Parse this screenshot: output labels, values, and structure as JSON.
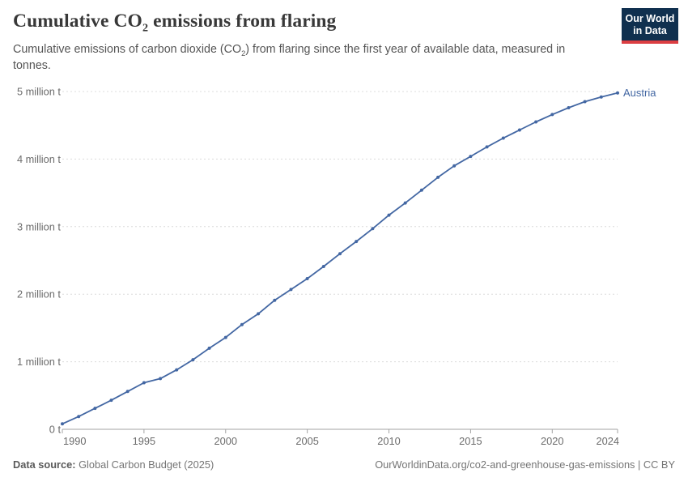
{
  "header": {
    "title_pre": "Cumulative CO",
    "title_sub": "2",
    "title_post": " emissions from flaring",
    "subtitle_pre": "Cumulative emissions of carbon dioxide (CO",
    "subtitle_sub": "2",
    "subtitle_post": ") from flaring since the first year of available data, measured in",
    "subtitle_line2": "tonnes."
  },
  "logo": {
    "line1": "Our World",
    "line2": "in Data"
  },
  "footer": {
    "source_label": "Data source:",
    "source_value": " Global Carbon Budget (2025)",
    "link": "OurWorldinData.org/co2-and-greenhouse-gas-emissions | CC BY"
  },
  "colors": {
    "line": "#4367a3",
    "grid": "#dcdcdc",
    "axis": "#a3a3a3",
    "tick_text": "#6b6b6b",
    "logo_bg": "#10304f",
    "logo_red": "#dc3e42"
  },
  "chart_data": {
    "type": "line",
    "title": "Cumulative CO2 emissions from flaring",
    "xlabel": "",
    "ylabel": "",
    "unit": "tonnes",
    "xlim": [
      1990,
      2024
    ],
    "ylim": [
      0,
      5
    ],
    "grid": "horizontal-dashed",
    "legend_position": "end-of-line-label",
    "x_ticks": [
      {
        "v": 1990,
        "label": "1990"
      },
      {
        "v": 1995,
        "label": "1995"
      },
      {
        "v": 2000,
        "label": "2000"
      },
      {
        "v": 2005,
        "label": "2005"
      },
      {
        "v": 2010,
        "label": "2010"
      },
      {
        "v": 2015,
        "label": "2015"
      },
      {
        "v": 2020,
        "label": "2020"
      },
      {
        "v": 2024,
        "label": "2024"
      }
    ],
    "y_ticks": [
      {
        "v": 0,
        "label": "0 t"
      },
      {
        "v": 1,
        "label": "1 million t"
      },
      {
        "v": 2,
        "label": "2 million t"
      },
      {
        "v": 3,
        "label": "3 million t"
      },
      {
        "v": 4,
        "label": "4 million t"
      },
      {
        "v": 5,
        "label": "5 million t"
      }
    ],
    "series": [
      {
        "name": "Austria",
        "unit": "million tonnes",
        "years": [
          1990,
          1991,
          1992,
          1993,
          1994,
          1995,
          1996,
          1997,
          1998,
          1999,
          2000,
          2001,
          2002,
          2003,
          2004,
          2005,
          2006,
          2007,
          2008,
          2009,
          2010,
          2011,
          2012,
          2013,
          2014,
          2015,
          2016,
          2017,
          2018,
          2019,
          2020,
          2021,
          2022,
          2023,
          2024
        ],
        "values": [
          0.08,
          0.19,
          0.31,
          0.43,
          0.56,
          0.69,
          0.75,
          0.88,
          1.03,
          1.2,
          1.36,
          1.55,
          1.71,
          1.91,
          2.07,
          2.23,
          2.41,
          2.6,
          2.78,
          2.97,
          3.17,
          3.35,
          3.54,
          3.73,
          3.9,
          4.04,
          4.18,
          4.31,
          4.43,
          4.55,
          4.66,
          4.76,
          4.85,
          4.92,
          4.98
        ]
      }
    ]
  }
}
